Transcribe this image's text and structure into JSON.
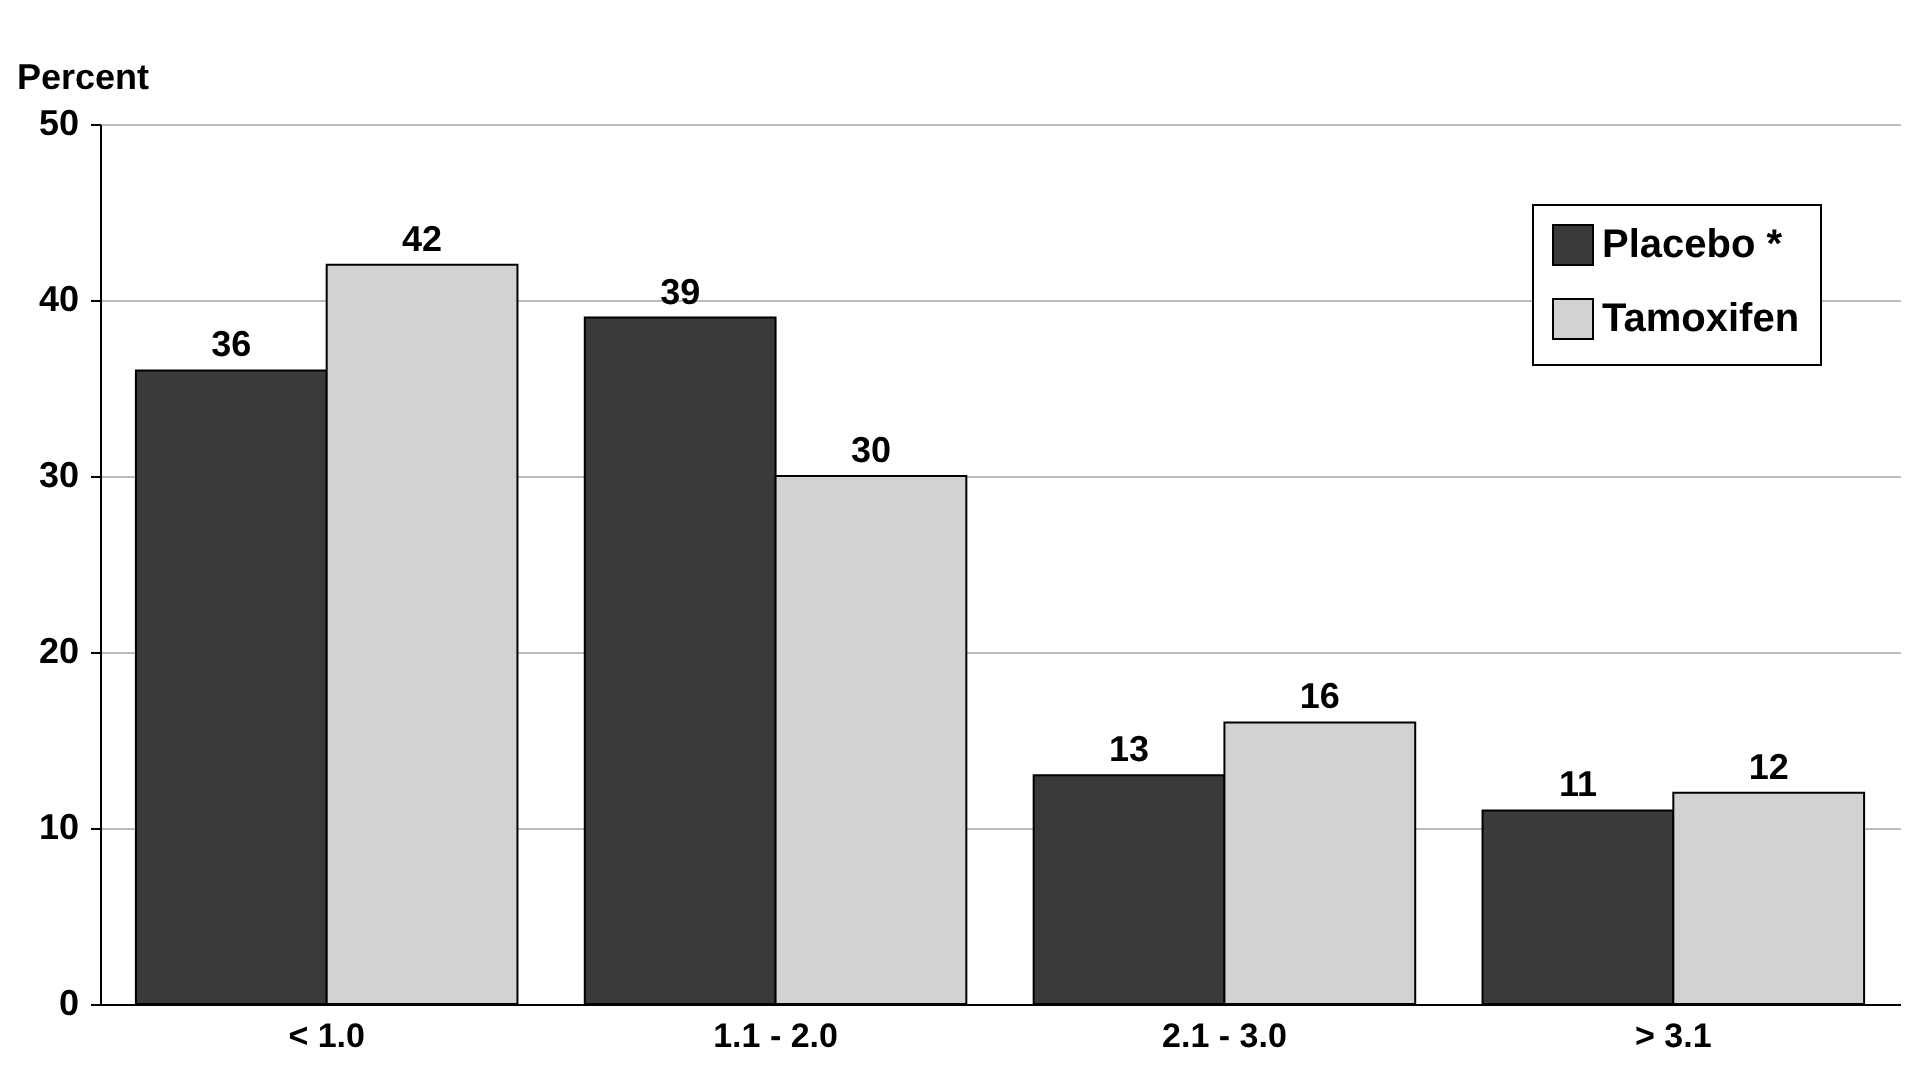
{
  "chart_data": {
    "type": "bar",
    "ylabel": "Percent",
    "categories": [
      "< 1.0",
      "1.1 - 2.0",
      "2.1 - 3.0",
      "> 3.1"
    ],
    "series": [
      {
        "name": "Placebo *",
        "color": "#3a3a3a",
        "values": [
          36,
          39,
          13,
          11
        ]
      },
      {
        "name": "Tamoxifen",
        "color": "#d2d2d2",
        "values": [
          42,
          30,
          16,
          12
        ]
      }
    ],
    "ylim": [
      0,
      50
    ],
    "yticks": [
      0,
      10,
      20,
      30,
      40,
      50
    ],
    "grid": "y",
    "legend": "top right",
    "data_labels": true
  }
}
